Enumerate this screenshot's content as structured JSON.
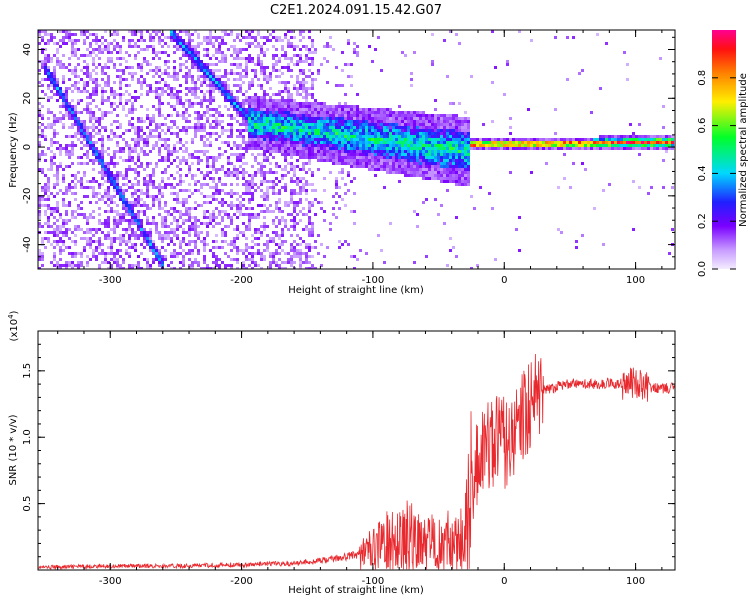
{
  "figure": {
    "title": "C2E1.2024.091.15.42.G07"
  },
  "chart_data": [
    {
      "type": "heatmap",
      "xlabel": "Height of straight line (km)",
      "ylabel": "Frequency (Hz)",
      "xlim": [
        -355,
        130
      ],
      "ylim": [
        -50,
        48
      ],
      "xticks": [
        -300,
        -200,
        -100,
        0,
        100
      ],
      "yticks": [
        -40,
        -20,
        0,
        20,
        40
      ],
      "colorbar": {
        "label": "Normalized spectral amplitude",
        "range": [
          0,
          1
        ],
        "ticks": [
          0.0,
          0.2,
          0.4,
          0.6,
          0.8
        ],
        "colormap": "light-violet, violet, blue, cyan, green, yellow, orange, red, magenta"
      },
      "features": [
        {
          "kind": "line",
          "from": [
            -350,
            33
          ],
          "to": [
            -258,
            -50
          ],
          "level": 0.3
        },
        {
          "kind": "line",
          "from": [
            -255,
            48
          ],
          "to": [
            -195,
            12
          ],
          "level": 0.3
        },
        {
          "kind": "band",
          "x": [
            -195,
            -25
          ],
          "center": [
            10,
            -2
          ],
          "spread": [
            6,
            8
          ],
          "level": 0.45
        },
        {
          "kind": "band",
          "x": [
            -25,
            130
          ],
          "center": [
            1,
            2
          ],
          "spread": [
            1.5,
            1.5
          ],
          "level": 0.9
        }
      ]
    },
    {
      "type": "line",
      "xlabel": "Height of straight line (km)",
      "ylabel": "SNR (10 * v/v)",
      "multiplier": "(x10",
      "multiplier_exp": "4",
      "multiplier_close": ")",
      "xlim": [
        -355,
        130
      ],
      "ylim": [
        0,
        1.8
      ],
      "xticks": [
        -300,
        -200,
        -100,
        0,
        100
      ],
      "yticks": [
        0.5,
        1.0,
        1.5
      ],
      "ytick_labels": [
        "0.5",
        "1.0",
        "1.5"
      ],
      "series": [
        {
          "color": "#e8282d",
          "x": [
            -355,
            -300,
            -250,
            -200,
            -160,
            -140,
            -120,
            -100,
            -90,
            -80,
            -70,
            -60,
            -50,
            -40,
            -30,
            -25,
            -20,
            -15,
            -10,
            -5,
            0,
            10,
            20,
            30,
            40,
            50,
            60,
            70,
            80,
            90,
            95,
            100,
            105,
            110,
            120,
            130
          ],
          "y": [
            0.02,
            0.03,
            0.03,
            0.04,
            0.05,
            0.07,
            0.1,
            0.15,
            0.22,
            0.25,
            0.25,
            0.24,
            0.22,
            0.22,
            0.25,
            0.6,
            0.8,
            0.95,
            0.95,
            1.0,
            0.95,
            1.1,
            1.25,
            1.35,
            1.38,
            1.4,
            1.4,
            1.4,
            1.41,
            1.4,
            1.42,
            1.4,
            1.38,
            1.38,
            1.37,
            1.37
          ]
        }
      ]
    }
  ]
}
